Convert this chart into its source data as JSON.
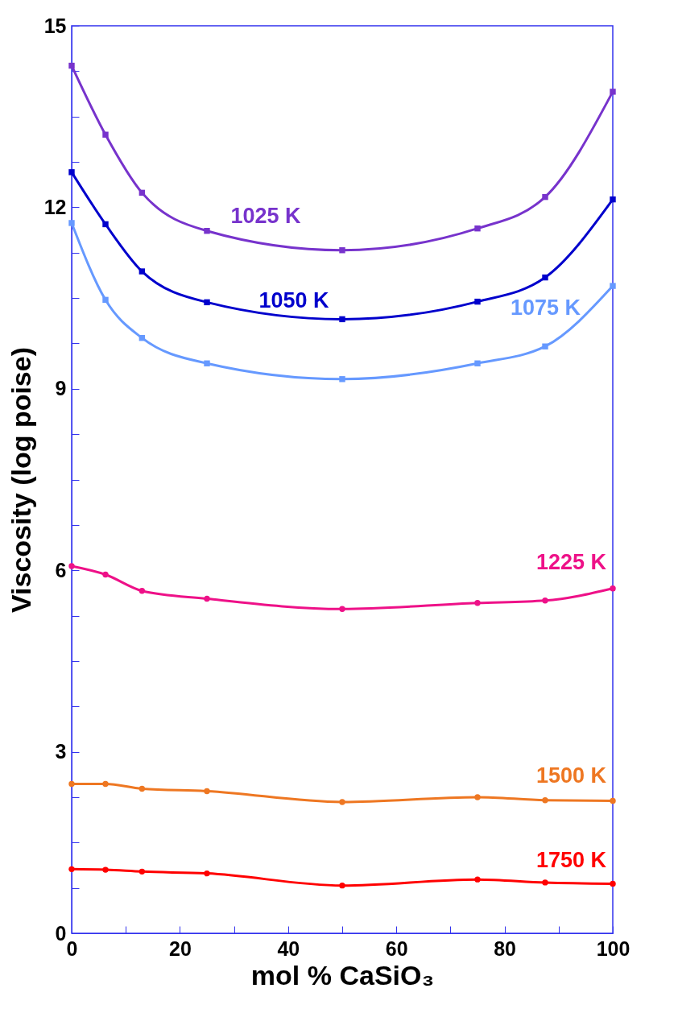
{
  "chart_data": {
    "type": "line",
    "xlabel": "mol % CaSiO₃",
    "ylabel": "Viscosity (log poise)",
    "x": [
      0,
      6.25,
      13,
      25,
      50,
      75,
      87.5,
      100
    ],
    "xlim": [
      0,
      100
    ],
    "ylim": [
      0,
      15
    ],
    "xticks": [
      0,
      {
        "value": 10,
        "label": null
      },
      20,
      {
        "value": 30,
        "label": null
      },
      40,
      {
        "value": 50,
        "label": null
      },
      60,
      {
        "value": 70,
        "label": null
      },
      80,
      {
        "value": 90,
        "label": null
      },
      100
    ],
    "yticks": [
      0,
      {
        "value": 0.75,
        "label": null
      },
      {
        "value": 1.5,
        "label": null
      },
      {
        "value": 2.25,
        "label": null
      },
      3,
      {
        "value": 3.75,
        "label": null
      },
      {
        "value": 4.5,
        "label": null
      },
      {
        "value": 5.25,
        "label": null
      },
      6,
      {
        "value": 6.75,
        "label": null
      },
      {
        "value": 7.5,
        "label": null
      },
      {
        "value": 8.25,
        "label": null
      },
      9,
      {
        "value": 9.75,
        "label": null
      },
      {
        "value": 10.5,
        "label": null
      },
      {
        "value": 11.25,
        "label": null
      },
      12,
      {
        "value": 12.75,
        "label": null
      },
      {
        "value": 13.5,
        "label": null
      },
      {
        "value": 14.25,
        "label": null
      },
      15
    ],
    "grid": false,
    "legend": false,
    "series": [
      {
        "name": "1025 K",
        "color": "#7733cc",
        "marker": "square",
        "values": [
          14.34,
          13.2,
          12.24,
          11.61,
          11.29,
          11.65,
          12.17,
          13.91
        ]
      },
      {
        "name": "1050 K",
        "color": "#0000cc",
        "marker": "square",
        "values": [
          12.58,
          11.72,
          10.94,
          10.43,
          10.15,
          10.44,
          10.84,
          12.13
        ]
      },
      {
        "name": "1075 K",
        "color": "#6699ff",
        "marker": "square",
        "values": [
          11.74,
          10.47,
          9.84,
          9.42,
          9.16,
          9.42,
          9.7,
          10.7
        ]
      },
      {
        "name": "1225 K",
        "color": "#ee1188",
        "marker": "circle",
        "values": [
          6.07,
          5.93,
          5.66,
          5.53,
          5.36,
          5.46,
          5.5,
          5.7
        ]
      },
      {
        "name": "1500 K",
        "color": "#ee7722",
        "marker": "circle",
        "values": [
          2.47,
          2.47,
          2.39,
          2.35,
          2.17,
          2.25,
          2.2,
          2.19
        ]
      },
      {
        "name": "1750 K",
        "color": "#ff0000",
        "marker": "circle",
        "values": [
          1.06,
          1.05,
          1.02,
          0.99,
          0.79,
          0.89,
          0.84,
          0.82
        ]
      }
    ]
  }
}
